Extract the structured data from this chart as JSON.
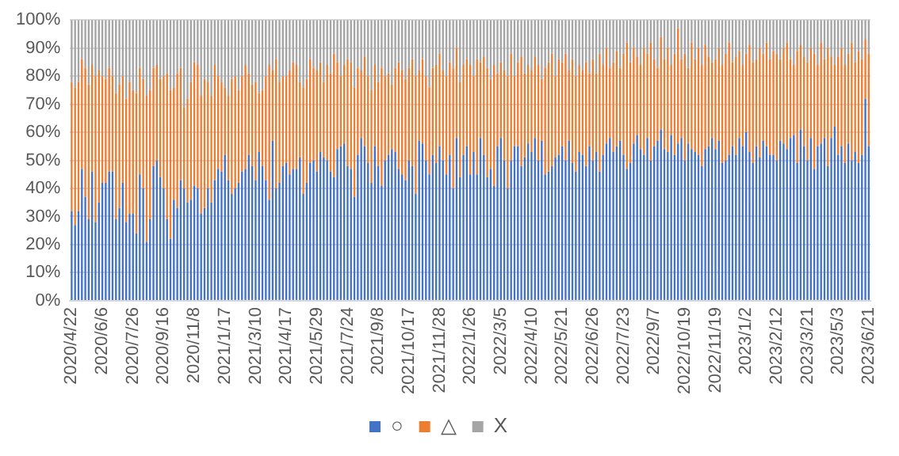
{
  "chart_data": {
    "type": "bar",
    "stacked": true,
    "legend": "bottom",
    "grid": "y",
    "categories": [
      "2020/4/22",
      null,
      null,
      null,
      null,
      null,
      null,
      null,
      null,
      "2020/6/6",
      null,
      null,
      null,
      null,
      null,
      null,
      null,
      null,
      "2020/7/26",
      null,
      null,
      null,
      null,
      null,
      null,
      null,
      null,
      "2020/9/16",
      null,
      null,
      null,
      null,
      null,
      null,
      null,
      null,
      "2020/11/8",
      null,
      null,
      null,
      null,
      null,
      null,
      null,
      null,
      "2021/1/17",
      null,
      null,
      null,
      null,
      null,
      null,
      null,
      null,
      "2021/3/10",
      null,
      null,
      null,
      null,
      null,
      null,
      null,
      null,
      "2021/4/17",
      null,
      null,
      null,
      null,
      null,
      null,
      null,
      null,
      "2021/5/29",
      null,
      null,
      null,
      null,
      null,
      null,
      null,
      null,
      "2021/7/24",
      null,
      null,
      null,
      null,
      null,
      null,
      null,
      null,
      "2021/9/8",
      null,
      null,
      null,
      null,
      null,
      null,
      null,
      null,
      "2021/10/17",
      null,
      null,
      null,
      null,
      null,
      null,
      null,
      null,
      "2021/11/28",
      null,
      null,
      null,
      null,
      null,
      null,
      null,
      null,
      "2022/1/26",
      null,
      null,
      null,
      null,
      null,
      null,
      null,
      null,
      "2022/3/5",
      null,
      null,
      null,
      null,
      null,
      null,
      null,
      null,
      "2022/4/10",
      null,
      null,
      null,
      null,
      null,
      null,
      null,
      null,
      "2022/5/21",
      null,
      null,
      null,
      null,
      null,
      null,
      null,
      null,
      "2022/6/26",
      null,
      null,
      null,
      null,
      null,
      null,
      null,
      null,
      "2022/7/23",
      null,
      null,
      null,
      null,
      null,
      null,
      null,
      null,
      "2022/9/7",
      null,
      null,
      null,
      null,
      null,
      null,
      null,
      null,
      "2022/10/19",
      null,
      null,
      null,
      null,
      null,
      null,
      null,
      null,
      "2022/11/19",
      null,
      null,
      null,
      null,
      null,
      null,
      null,
      null,
      "2023/1/2",
      null,
      null,
      null,
      null,
      null,
      null,
      null,
      null,
      "2023/2/12",
      null,
      null,
      null,
      null,
      null,
      null,
      null,
      null,
      "2023/3/21",
      null,
      null,
      null,
      null,
      null,
      null,
      null,
      null,
      "2023/5/3",
      null,
      null,
      null,
      null,
      null,
      null,
      null,
      null,
      "2023/6/21"
    ],
    "ylim": [
      0,
      100
    ],
    "yticks": [
      {
        "value": 0,
        "label": "0%"
      },
      {
        "value": 10,
        "label": "10%"
      },
      {
        "value": 20,
        "label": "20%"
      },
      {
        "value": 30,
        "label": "30%"
      },
      {
        "value": 40,
        "label": "40%"
      },
      {
        "value": 50,
        "label": "50%"
      },
      {
        "value": 60,
        "label": "60%"
      },
      {
        "value": 70,
        "label": "70%"
      },
      {
        "value": 80,
        "label": "80%"
      },
      {
        "value": 90,
        "label": "90%"
      },
      {
        "value": 100,
        "label": "100%"
      }
    ],
    "series": [
      {
        "name": "○",
        "color": "#4472c4",
        "values": [
          32,
          27,
          32,
          47,
          37,
          29,
          46,
          28,
          35,
          42,
          42,
          46,
          46,
          29,
          33,
          42,
          28,
          31,
          31,
          24,
          45,
          40,
          21,
          29,
          48,
          50,
          44,
          40,
          29,
          22,
          36,
          33,
          43,
          40,
          35,
          36,
          41,
          40,
          31,
          33,
          40,
          35,
          43,
          47,
          46,
          52,
          43,
          38,
          40,
          42,
          46,
          47,
          52,
          48,
          43,
          53,
          48,
          43,
          36,
          57,
          40,
          42,
          48,
          49,
          45,
          47,
          47,
          51,
          38,
          42,
          49,
          50,
          46,
          53,
          51,
          50,
          46,
          44,
          54,
          55,
          56,
          48,
          47,
          37,
          52,
          58,
          55,
          49,
          42,
          55,
          48,
          41,
          50,
          52,
          54,
          53,
          47,
          45,
          43,
          50,
          48,
          38,
          57,
          56,
          50,
          45,
          52,
          49,
          55,
          50,
          45,
          52,
          40,
          58,
          44,
          52,
          55,
          45,
          53,
          45,
          58,
          52,
          44,
          47,
          41,
          55,
          58,
          50,
          40,
          50,
          55,
          55,
          48,
          51,
          56,
          53,
          58,
          50,
          57,
          45,
          46,
          48,
          51,
          52,
          55,
          50,
          57,
          49,
          46,
          53,
          52,
          48,
          55,
          50,
          53,
          46,
          52,
          56,
          58,
          53,
          55,
          57,
          52,
          47,
          49,
          56,
          59,
          54,
          52,
          58,
          50,
          55,
          57,
          61,
          54,
          53,
          59,
          52,
          56,
          58,
          50,
          56,
          54,
          53,
          52,
          48,
          54,
          55,
          58,
          54,
          57,
          49,
          50,
          52,
          55,
          52,
          58,
          55,
          60,
          53,
          49,
          55,
          51,
          57,
          55,
          52,
          52,
          50,
          57,
          56,
          54,
          58,
          59,
          49,
          61,
          55,
          50,
          58,
          47,
          55,
          56,
          58,
          48,
          58,
          62,
          52,
          55,
          49,
          56,
          50,
          53,
          49,
          52,
          72,
          55
        ]
      },
      {
        "name": "△",
        "color": "#ed7d31",
        "values": [
          46,
          49,
          46,
          39,
          46,
          48,
          38,
          52,
          47,
          38,
          37,
          37,
          34,
          45,
          44,
          38,
          44,
          47,
          44,
          50,
          38,
          39,
          52,
          46,
          35,
          34,
          35,
          40,
          52,
          53,
          40,
          48,
          40,
          29,
          37,
          42,
          44,
          44,
          42,
          46,
          38,
          38,
          41,
          33,
          32,
          24,
          30,
          41,
          40,
          33,
          34,
          37,
          29,
          29,
          35,
          21,
          27,
          37,
          48,
          25,
          46,
          36,
          32,
          31,
          37,
          38,
          37,
          27,
          38,
          37,
          37,
          33,
          36,
          32,
          27,
          34,
          35,
          44,
          31,
          25,
          28,
          38,
          38,
          39,
          31,
          24,
          32,
          31,
          33,
          29,
          30,
          42,
          30,
          29,
          23,
          30,
          38,
          37,
          36,
          33,
          38,
          42,
          25,
          30,
          30,
          31,
          31,
          35,
          33,
          32,
          35,
          33,
          43,
          32,
          34,
          32,
          31,
          39,
          27,
          41,
          27,
          35,
          39,
          32,
          43,
          26,
          27,
          32,
          40,
          38,
          25,
          30,
          39,
          30,
          28,
          29,
          29,
          34,
          22,
          38,
          39,
          40,
          29,
          34,
          30,
          38,
          25,
          37,
          34,
          31,
          30,
          37,
          26,
          36,
          28,
          42,
          32,
          34,
          25,
          32,
          34,
          26,
          36,
          45,
          36,
          34,
          28,
          30,
          38,
          30,
          42,
          31,
          26,
          33,
          32,
          37,
          25,
          36,
          41,
          28,
          38,
          27,
          38,
          33,
          38,
          36,
          37,
          32,
          27,
          32,
          33,
          35,
          38,
          40,
          30,
          35,
          31,
          29,
          28,
          38,
          36,
          31,
          39,
          31,
          37,
          34,
          37,
          38,
          29,
          34,
          38,
          28,
          25,
          40,
          30,
          32,
          35,
          32,
          41,
          29,
          36,
          28,
          42,
          29,
          22,
          35,
          35,
          35,
          32,
          42,
          32,
          40,
          34,
          21,
          33
        ]
      },
      {
        "name": "X",
        "color": "#a5a5a5",
        "values": [
          22,
          24,
          22,
          14,
          17,
          23,
          16,
          20,
          18,
          20,
          21,
          17,
          20,
          26,
          23,
          20,
          28,
          22,
          25,
          26,
          17,
          21,
          27,
          25,
          17,
          16,
          21,
          20,
          19,
          25,
          24,
          19,
          17,
          31,
          28,
          22,
          15,
          16,
          27,
          21,
          22,
          27,
          16,
          20,
          22,
          24,
          27,
          21,
          20,
          25,
          20,
          16,
          19,
          23,
          22,
          26,
          25,
          20,
          16,
          18,
          14,
          22,
          20,
          20,
          18,
          15,
          16,
          22,
          24,
          21,
          14,
          17,
          18,
          15,
          22,
          16,
          19,
          12,
          15,
          20,
          16,
          14,
          15,
          24,
          17,
          18,
          13,
          20,
          25,
          16,
          22,
          17,
          20,
          19,
          23,
          17,
          15,
          18,
          21,
          17,
          14,
          20,
          18,
          14,
          20,
          24,
          17,
          16,
          12,
          18,
          20,
          15,
          17,
          10,
          22,
          16,
          14,
          16,
          20,
          14,
          15,
          13,
          17,
          21,
          16,
          19,
          15,
          18,
          20,
          12,
          20,
          15,
          13,
          19,
          16,
          18,
          13,
          16,
          21,
          17,
          15,
          12,
          20,
          14,
          15,
          12,
          18,
          14,
          20,
          16,
          18,
          15,
          19,
          14,
          19,
          12,
          16,
          10,
          17,
          15,
          11,
          17,
          12,
          8,
          15,
          10,
          13,
          16,
          10,
          12,
          8,
          14,
          17,
          6,
          14,
          10,
          16,
          12,
          3,
          14,
          12,
          17,
          8,
          14,
          10,
          16,
          9,
          13,
          15,
          14,
          10,
          16,
          12,
          8,
          15,
          13,
          11,
          16,
          12,
          9,
          15,
          14,
          10,
          12,
          8,
          14,
          11,
          12,
          14,
          10,
          8,
          14,
          16,
          11,
          9,
          13,
          15,
          10,
          12,
          16,
          8,
          14,
          10,
          13,
          16,
          13,
          10,
          16,
          12,
          8,
          15,
          11,
          14,
          7,
          12
        ]
      }
    ]
  }
}
